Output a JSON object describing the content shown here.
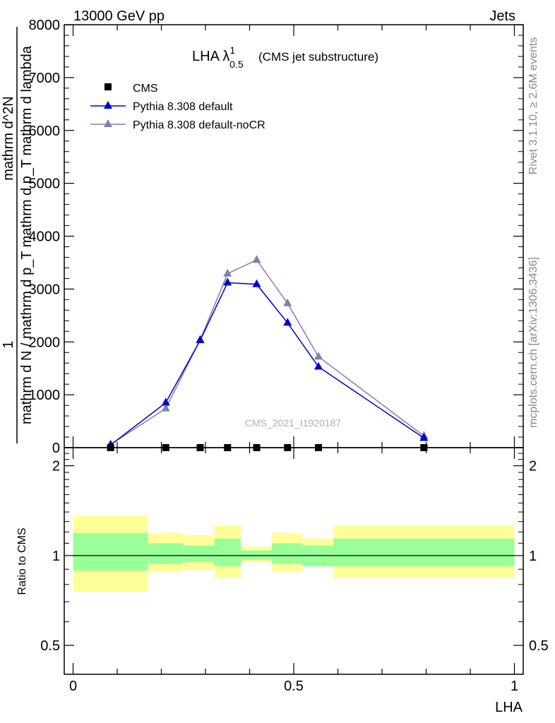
{
  "header": {
    "left": "13000 GeV pp",
    "right": "Jets"
  },
  "side": {
    "rivet": "Rivet 3.1.10, ≥ 2.6M events",
    "mcplots": "mcplots.cern.ch [arXiv:1306.3436]"
  },
  "watermark": "CMS_2021_I1920187",
  "chart_data": [
    {
      "type": "line",
      "title_main": "LHA λ",
      "title_sup": "1",
      "title_sub": "0.5",
      "title_rest": "(CMS jet substructure)",
      "ylabel": {
        "one": "1",
        "denominator": "mathrm d N / mathrm d p_T mathrm d p_T mathrm d lambda",
        "numerator": "mathrm d^2N"
      },
      "ylim": [
        0,
        8000
      ],
      "xlim": [
        -0.02,
        1.02
      ],
      "y_ticks": [
        0,
        1000,
        2000,
        3000,
        4000,
        5000,
        6000,
        7000,
        8000
      ],
      "y_tick_labels": [
        "0",
        "1000",
        "2000",
        "3000",
        "4000",
        "5000",
        "6000",
        "7000",
        "8000"
      ],
      "legend": {
        "placement": "top-left",
        "items": [
          {
            "label": "CMS",
            "marker": "square",
            "color": "#000000"
          },
          {
            "label": "Pythia 8.308 default",
            "marker": "triangle",
            "color": "#0000cc"
          },
          {
            "label": "Pythia 8.308 default-noCR",
            "marker": "triangle",
            "color": "#7f7fb2"
          }
        ]
      },
      "series": [
        {
          "name": "CMS",
          "color": "#000000",
          "marker": "square",
          "x": [
            0.085,
            0.21,
            0.288,
            0.35,
            0.416,
            0.486,
            0.556,
            0.795
          ],
          "y": [
            0,
            0,
            0,
            0,
            0,
            0,
            0,
            0
          ]
        },
        {
          "name": "Pythia 8.308 default",
          "color": "#0000cc",
          "marker": "triangle",
          "x": [
            0.085,
            0.21,
            0.288,
            0.35,
            0.416,
            0.486,
            0.556,
            0.795
          ],
          "y": [
            50,
            850,
            2030,
            3120,
            3090,
            2360,
            1530,
            180
          ]
        },
        {
          "name": "Pythia 8.308 default-noCR",
          "color": "#7f7fb2",
          "marker": "triangle",
          "x": [
            0.085,
            0.21,
            0.288,
            0.35,
            0.416,
            0.486,
            0.556,
            0.795
          ],
          "y": [
            60,
            740,
            2040,
            3290,
            3550,
            2730,
            1720,
            220
          ]
        }
      ]
    },
    {
      "type": "area",
      "ylabel": "Ratio to CMS",
      "xlabel": "LHA",
      "scale": "log",
      "ylim": [
        0.4,
        2.3
      ],
      "xlim": [
        -0.02,
        1.02
      ],
      "y_tick_labels": [
        "0.5",
        "1",
        "2"
      ],
      "y_ticks": [
        0.5,
        1,
        2
      ],
      "x_ticks": [
        0,
        0.5,
        1
      ],
      "x_tick_labels": [
        "0",
        "0.5",
        "1"
      ],
      "reference": 1,
      "bands": {
        "inner_color": "#99ff99",
        "outer_color": "#ffff99",
        "bins": [
          {
            "x0": 0.0,
            "x1": 0.17,
            "lo": 0.89,
            "hi": 1.19,
            "lo2": 0.76,
            "hi2": 1.36
          },
          {
            "x0": 0.17,
            "x1": 0.25,
            "lo": 0.94,
            "hi": 1.1,
            "lo2": 0.88,
            "hi2": 1.19
          },
          {
            "x0": 0.25,
            "x1": 0.32,
            "lo": 0.95,
            "hi": 1.08,
            "lo2": 0.9,
            "hi2": 1.17
          },
          {
            "x0": 0.32,
            "x1": 0.38,
            "lo": 0.92,
            "hi": 1.14,
            "lo2": 0.84,
            "hi2": 1.26
          },
          {
            "x0": 0.38,
            "x1": 0.45,
            "lo": 0.97,
            "hi": 1.04,
            "lo2": 0.95,
            "hi2": 1.07
          },
          {
            "x0": 0.45,
            "x1": 0.52,
            "lo": 0.94,
            "hi": 1.1,
            "lo2": 0.88,
            "hi2": 1.19
          },
          {
            "x0": 0.52,
            "x1": 0.59,
            "lo": 0.92,
            "hi": 1.08,
            "lo2": 0.96,
            "hi2": 1.14
          },
          {
            "x0": 0.59,
            "x1": 1.0,
            "lo": 0.92,
            "hi": 1.14,
            "lo2": 0.84,
            "hi2": 1.26
          }
        ]
      }
    }
  ]
}
